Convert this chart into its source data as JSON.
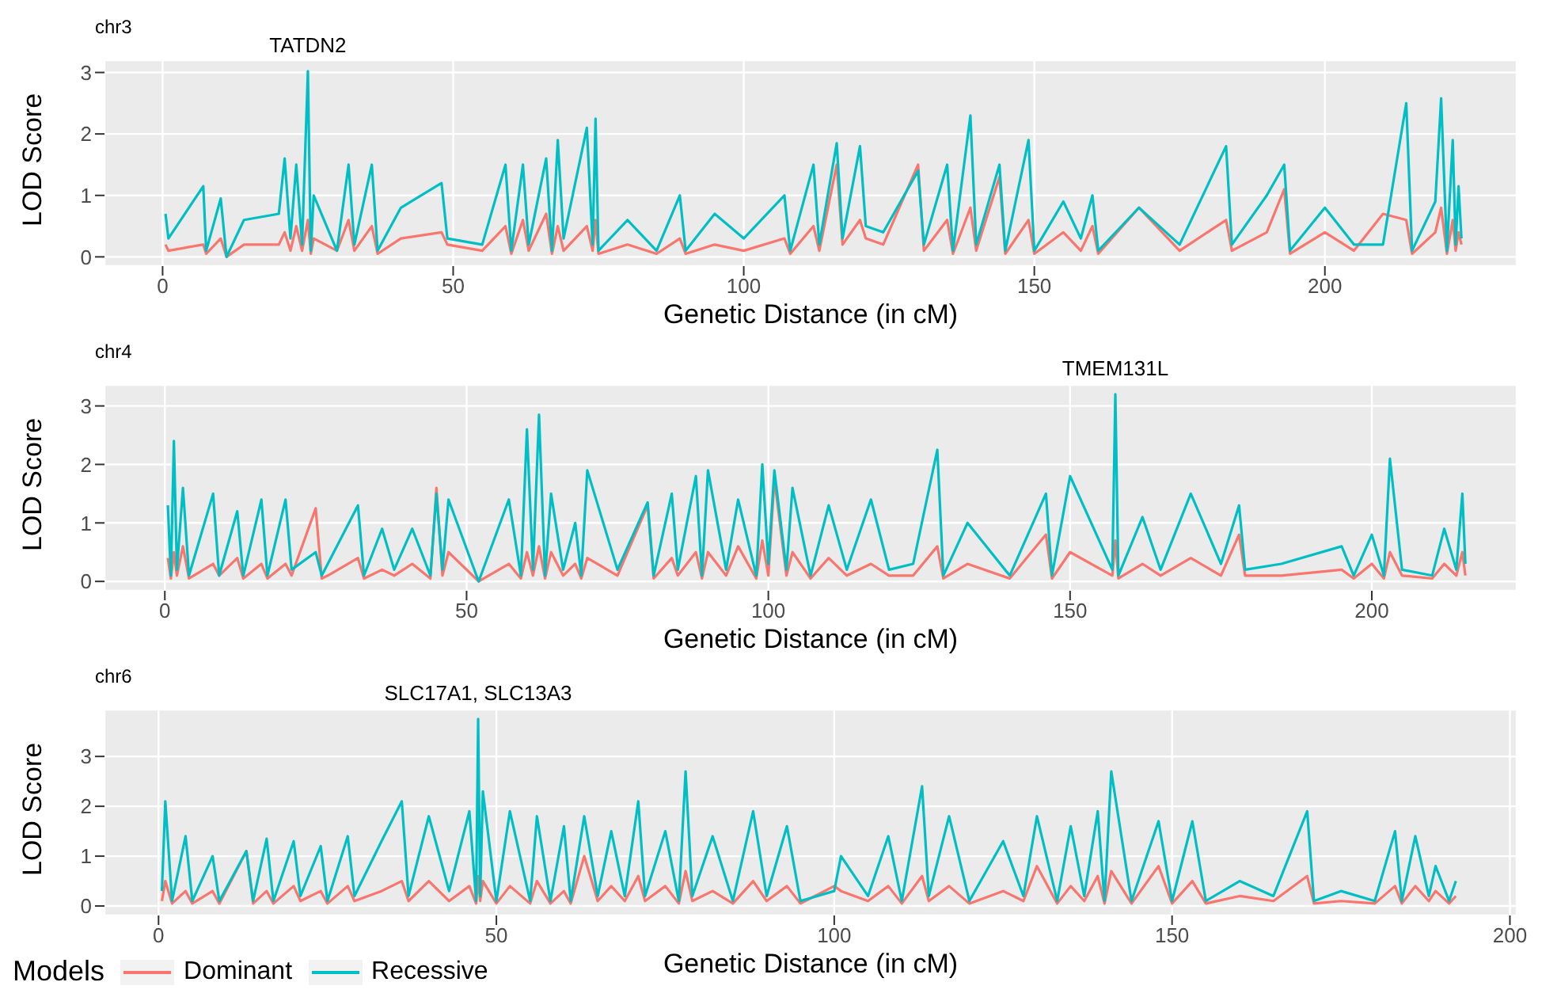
{
  "chart_data": [
    {
      "type": "line",
      "title": "chr3",
      "xlabel": "Genetic Distance (in cM)",
      "ylabel": "LOD Score",
      "xlim": [
        -10,
        233
      ],
      "ylim": [
        -0.15,
        3.2
      ],
      "xticks": [
        0,
        50,
        100,
        150,
        200
      ],
      "yticks": [
        0,
        1,
        2,
        3
      ],
      "grid": true,
      "legend": false,
      "annotations": [
        {
          "text": "TATDN2",
          "x": 25,
          "y": 3.02
        }
      ],
      "x": [
        0.5,
        1,
        7,
        7.5,
        10,
        11,
        14,
        20,
        21,
        22,
        23,
        24,
        25,
        25.5,
        26,
        30,
        32,
        33,
        36,
        37,
        41,
        48,
        49,
        55,
        59,
        60,
        62,
        63,
        66,
        67,
        68,
        69,
        73,
        74,
        74.5,
        75,
        80,
        85,
        89,
        90,
        95,
        100,
        107,
        108,
        112,
        113,
        116,
        117,
        120,
        121,
        124,
        130,
        131,
        135,
        136,
        139,
        140,
        144,
        145,
        149,
        150,
        155,
        158,
        160,
        161,
        168,
        175,
        183,
        184,
        190,
        193,
        194,
        200,
        205,
        210,
        214,
        215,
        219,
        220,
        221,
        222,
        222.5,
        223,
        223.5
      ],
      "series": [
        {
          "color": "#f8766d",
          "values": [
            0.2,
            0.1,
            0.2,
            0.05,
            0.3,
            0,
            0.2,
            0.2,
            0.4,
            0.1,
            0.5,
            0.1,
            0.6,
            0.05,
            0.3,
            0.1,
            0.6,
            0.1,
            0.5,
            0.05,
            0.3,
            0.4,
            0.2,
            0.1,
            0.5,
            0.05,
            0.6,
            0.1,
            0.7,
            0.05,
            0.5,
            0.1,
            0.5,
            0.1,
            0.6,
            0.05,
            0.2,
            0.05,
            0.3,
            0.05,
            0.2,
            0.1,
            0.3,
            0.05,
            0.5,
            0.1,
            1.5,
            0.2,
            0.6,
            0.3,
            0.2,
            1.5,
            0.1,
            0.6,
            0.05,
            0.8,
            0.1,
            1.3,
            0.05,
            0.6,
            0.05,
            0.4,
            0.1,
            0.5,
            0.05,
            0.8,
            0.1,
            0.6,
            0.1,
            0.4,
            1.1,
            0.05,
            0.4,
            0.1,
            0.7,
            0.6,
            0.05,
            0.4,
            0.8,
            0.05,
            0.6,
            0.1,
            0.4,
            0.2
          ]
        },
        {
          "color": "#00bfc4",
          "values": [
            0.7,
            0.3,
            1.15,
            0.1,
            0.95,
            0,
            0.6,
            0.7,
            1.6,
            0.3,
            1.5,
            0.2,
            3.02,
            0.1,
            1.0,
            0.1,
            1.5,
            0.2,
            1.5,
            0.1,
            0.8,
            1.2,
            0.3,
            0.2,
            1.5,
            0.1,
            1.5,
            0.2,
            1.6,
            0.1,
            1.9,
            0.3,
            2.1,
            0.2,
            2.25,
            0.1,
            0.6,
            0.1,
            1.0,
            0.1,
            0.7,
            0.3,
            1.0,
            0.1,
            1.5,
            0.2,
            1.85,
            0.3,
            1.8,
            0.5,
            0.4,
            1.4,
            0.2,
            1.5,
            0.1,
            2.3,
            0.2,
            1.5,
            0.1,
            1.9,
            0.1,
            0.9,
            0.3,
            1.0,
            0.1,
            0.8,
            0.2,
            1.8,
            0.2,
            1.0,
            1.5,
            0.1,
            0.8,
            0.2,
            0.2,
            2.5,
            0.1,
            0.9,
            2.58,
            0.1,
            1.9,
            0.2,
            1.15,
            0.3
          ]
        }
      ]
    },
    {
      "type": "line",
      "title": "chr4",
      "xlabel": "Genetic Distance (in cM)",
      "ylabel": "LOD Score",
      "xlim": [
        -10,
        224
      ],
      "ylim": [
        -0.16,
        3.36
      ],
      "xticks": [
        0,
        50,
        100,
        150,
        200
      ],
      "yticks": [
        0,
        1,
        2,
        3
      ],
      "grid": true,
      "legend": false,
      "annotations": [
        {
          "text": "TMEM131L",
          "x": 157.5,
          "y": 3.2
        }
      ],
      "x": [
        0.5,
        1,
        1.5,
        2,
        3,
        4,
        8,
        9,
        12,
        13,
        16,
        17,
        20,
        21,
        25,
        26,
        27,
        32,
        33,
        36,
        38,
        41,
        44,
        45,
        46,
        47,
        52,
        57,
        59,
        60,
        61,
        62,
        63,
        64,
        66,
        68,
        69,
        70,
        75,
        80,
        81,
        84,
        85,
        88,
        89,
        90,
        93,
        95,
        98,
        99,
        100,
        101,
        103,
        104,
        107,
        110,
        113,
        117,
        120,
        124,
        128,
        129,
        133,
        140,
        146,
        147,
        150,
        157,
        157.5,
        158,
        162,
        165,
        170,
        175,
        178,
        179,
        185,
        195,
        197,
        200,
        202,
        203,
        205,
        210,
        212,
        214,
        215,
        215.5
      ],
      "series": [
        {
          "color": "#f8766d",
          "values": [
            0.4,
            0.05,
            0.5,
            0.1,
            0.6,
            0.05,
            0.3,
            0.1,
            0.4,
            0.05,
            0.3,
            0.05,
            0.3,
            0.1,
            1.25,
            0.05,
            0.1,
            0.4,
            0.05,
            0.2,
            0.1,
            0.3,
            0.05,
            1.6,
            0.1,
            0.5,
            0,
            0.3,
            0.05,
            0.5,
            0.1,
            0.6,
            0.05,
            0.5,
            0.1,
            0.3,
            0.05,
            0.4,
            0.1,
            1.3,
            0.05,
            0.4,
            0.1,
            0.5,
            0.05,
            0.5,
            0.1,
            0.6,
            0.05,
            0.7,
            0.1,
            1.75,
            0.1,
            0.5,
            0.05,
            0.4,
            0.1,
            0.3,
            0.1,
            0.1,
            0.6,
            0.05,
            0.3,
            0.05,
            0.8,
            0.05,
            0.5,
            0.1,
            0.7,
            0.05,
            0.3,
            0.1,
            0.4,
            0.1,
            0.8,
            0.1,
            0.1,
            0.2,
            0.05,
            0.3,
            0.05,
            0.5,
            0.1,
            0.05,
            0.3,
            0.1,
            0.5,
            0.1
          ]
        },
        {
          "color": "#00bfc4",
          "values": [
            1.3,
            0.1,
            2.4,
            0.2,
            1.6,
            0.1,
            1.5,
            0.1,
            1.2,
            0.1,
            1.4,
            0.1,
            1.4,
            0.2,
            0.5,
            0.1,
            0.3,
            1.3,
            0.1,
            0.9,
            0.2,
            0.9,
            0.1,
            1.5,
            0.2,
            1.4,
            0,
            1.4,
            0.1,
            2.6,
            0.2,
            2.85,
            0.1,
            1.5,
            0.2,
            1.0,
            0.1,
            1.9,
            0.2,
            1.35,
            0.1,
            1.5,
            0.2,
            1.8,
            0.1,
            1.9,
            0.2,
            1.4,
            0.1,
            2.0,
            0.3,
            1.9,
            0.2,
            1.6,
            0.1,
            1.3,
            0.2,
            1.4,
            0.2,
            0.3,
            2.25,
            0.1,
            1.0,
            0.1,
            1.5,
            0.1,
            1.8,
            0.2,
            3.2,
            0.1,
            1.1,
            0.2,
            1.5,
            0.3,
            1.3,
            0.2,
            0.3,
            0.6,
            0.1,
            0.8,
            0.1,
            2.1,
            0.2,
            0.1,
            0.9,
            0.2,
            1.5,
            0.3
          ]
        }
      ]
    },
    {
      "type": "line",
      "title": "chr6",
      "xlabel": "Genetic Distance (in cM)",
      "ylabel": "LOD Score",
      "legend_title": "Models",
      "xlim": [
        -8,
        201
      ],
      "ylim": [
        -0.19,
        3.94
      ],
      "xticks": [
        0,
        50,
        100,
        150,
        200
      ],
      "yticks": [
        0,
        1,
        2,
        3
      ],
      "grid": true,
      "legend": "bottom left",
      "annotations": [
        {
          "text": "SLC17A1, SLC13A3",
          "x": 47.3,
          "y": 3.75
        }
      ],
      "x": [
        0.5,
        1,
        2,
        4,
        5,
        8,
        9,
        13,
        14,
        16,
        17,
        20,
        21,
        24,
        25,
        28,
        29,
        33,
        36,
        37,
        40,
        43,
        46,
        47,
        47.3,
        47.6,
        48,
        50,
        52,
        55,
        56,
        58,
        60,
        61,
        63,
        65,
        67,
        69,
        71,
        72,
        75,
        77,
        78,
        79,
        82,
        85,
        88,
        90,
        93,
        95,
        100,
        101,
        105,
        108,
        110,
        113,
        114,
        117,
        120,
        125,
        128,
        130,
        133,
        135,
        137,
        139,
        140,
        141,
        144,
        148,
        150,
        153,
        155,
        160,
        165,
        170,
        171,
        175,
        180,
        183,
        184,
        186,
        188,
        189,
        191,
        192
      ],
      "series": [
        {
          "name": "Dominant",
          "color": "#f8766d",
          "values": [
            0.1,
            0.5,
            0.05,
            0.3,
            0.05,
            0.3,
            0.05,
            1.1,
            0.05,
            0.3,
            0.05,
            0.4,
            0.1,
            0.3,
            0.05,
            0.4,
            0.1,
            0.3,
            0.5,
            0.1,
            0.5,
            0.1,
            0.4,
            0.05,
            0.6,
            0.1,
            0.5,
            0.05,
            0.4,
            0.05,
            0.5,
            0.05,
            0.3,
            0.05,
            1.0,
            0.1,
            0.4,
            0.1,
            0.6,
            0.1,
            0.4,
            0.05,
            0.7,
            0.1,
            0.3,
            0.05,
            0.5,
            0.1,
            0.4,
            0.05,
            0.4,
            0.3,
            0.1,
            0.4,
            0.05,
            0.6,
            0.1,
            0.4,
            0.05,
            0.3,
            0.1,
            0.8,
            0.05,
            0.4,
            0.1,
            0.6,
            0.05,
            0.7,
            0.05,
            0.8,
            0.05,
            0.5,
            0.05,
            0.2,
            0.1,
            0.6,
            0.05,
            0.1,
            0.05,
            0.4,
            0.05,
            0.4,
            0.1,
            0.3,
            0.05,
            0.2
          ]
        },
        {
          "name": "Recessive",
          "color": "#00bfc4",
          "values": [
            0.3,
            2.1,
            0.1,
            1.4,
            0.1,
            1.0,
            0.1,
            1.1,
            0.1,
            1.35,
            0.1,
            1.3,
            0.2,
            1.2,
            0.1,
            1.4,
            0.2,
            1.3,
            2.1,
            0.2,
            1.8,
            0.3,
            1.9,
            0.1,
            3.75,
            0.2,
            2.3,
            0.1,
            1.9,
            0.1,
            1.8,
            0.1,
            1.6,
            0.1,
            1.8,
            0.2,
            1.5,
            0.2,
            2.1,
            0.2,
            1.5,
            0.1,
            2.7,
            0.2,
            1.4,
            0.1,
            1.9,
            0.2,
            1.6,
            0.1,
            0.3,
            1.0,
            0.2,
            1.4,
            0.1,
            2.4,
            0.2,
            1.8,
            0.1,
            1.3,
            0.2,
            1.8,
            0.1,
            1.6,
            0.2,
            1.9,
            0.1,
            2.7,
            0.1,
            1.7,
            0.1,
            1.7,
            0.1,
            0.5,
            0.2,
            1.9,
            0.1,
            0.3,
            0.1,
            1.5,
            0.1,
            1.4,
            0.2,
            0.8,
            0.1,
            0.5
          ]
        }
      ]
    }
  ]
}
